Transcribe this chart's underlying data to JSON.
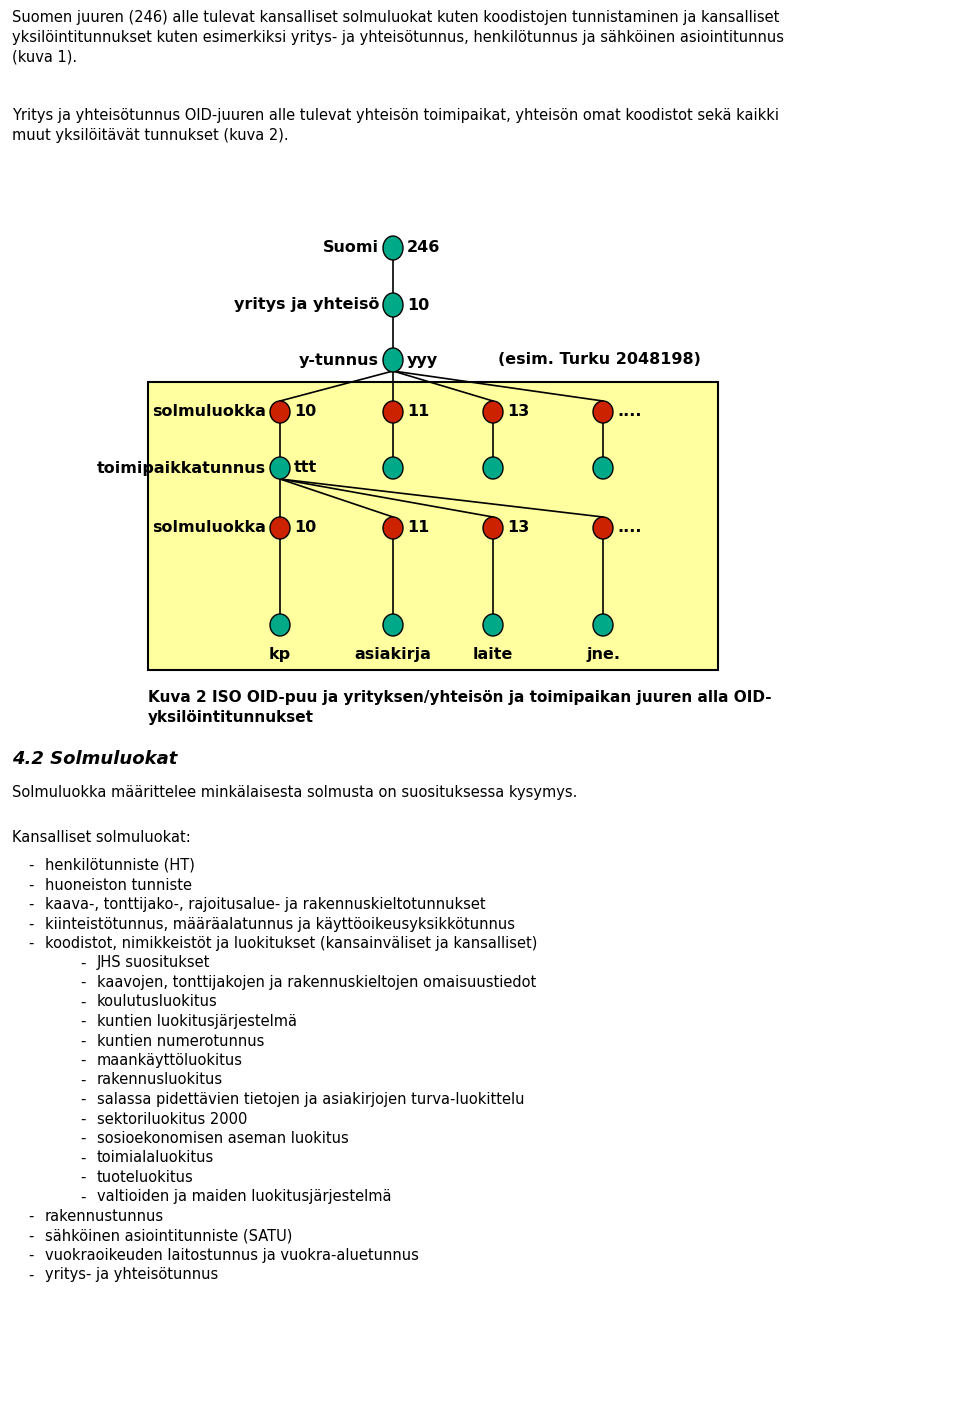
{
  "bg_color": "#ffffff",
  "fig_width": 9.6,
  "fig_height": 14.06,
  "para1": "Suomen juuren (246) alle tulevat kansalliset solmuluokat kuten koodistojen tunnistaminen ja kansalliset\nyksilöintitunnukset kuten esimerkiksi yritys- ja yhteisötunnus, henkilötunnus ja sähköinen asiointitunnus\n(kuva 1).",
  "para2": "Yritys ja yhteisötunnus OID-juuren alle tulevat yhteisön toimipaikat, yhteisön omat koodistot sekä kaikki\nmuut yksilöitävät tunnukset (kuva 2).",
  "caption_line1": "Kuva 2 ISO OID-puu ja yrityksen/yhteisön ja toimipaikan juuren alla OID-",
  "caption_line2": "yksilöintitunnukset",
  "section_title": "4.2 Solmuluokat",
  "section_body": "Solmuluokka määrittelee minkälaisesta solmusta on suosituksessa kysymys.",
  "list_title": "Kansalliset solmuluokat:",
  "list_items": [
    {
      "level": 1,
      "text": "henkilötunniste (HT)"
    },
    {
      "level": 1,
      "text": "huoneiston tunniste"
    },
    {
      "level": 1,
      "text": "kaava-, tonttijako-, rajoitusalue- ja rakennuskieltotunnukset"
    },
    {
      "level": 1,
      "text": "kiinteistötunnus, määräalatunnus ja käyttöoikeusyksikkötunnus"
    },
    {
      "level": 1,
      "text": "koodistot, nimikkeistöt ja luokitukset (kansainväliset ja kansalliset)"
    },
    {
      "level": 2,
      "text": "JHS suositukset"
    },
    {
      "level": 2,
      "text": "kaavojen, tonttijakojen ja rakennuskieltojen omaisuustiedot"
    },
    {
      "level": 2,
      "text": "koulutusluokitus"
    },
    {
      "level": 2,
      "text": "kuntien luokitusjärjestelmä"
    },
    {
      "level": 2,
      "text": "kuntien numerotunnus"
    },
    {
      "level": 2,
      "text": "maankäyttöluokitus"
    },
    {
      "level": 2,
      "text": "rakennusluokitus"
    },
    {
      "level": 2,
      "text": "salassa pidettävien tietojen ja asiakirjojen turva-luokittelu"
    },
    {
      "level": 2,
      "text": "sektoriluokitus 2000"
    },
    {
      "level": 2,
      "text": "sosioekonomisen aseman luokitus"
    },
    {
      "level": 2,
      "text": "toimialaluokitus"
    },
    {
      "level": 2,
      "text": "tuoteluokitus"
    },
    {
      "level": 2,
      "text": "valtioiden ja maiden luokitusjärjestelmä"
    },
    {
      "level": 1,
      "text": "rakennustunnus"
    },
    {
      "level": 1,
      "text": "sähköinen asiointitunniste (SATU)"
    },
    {
      "level": 1,
      "text": "vuokraoikeuden laitostunnus ja vuokra-aluetunnus"
    },
    {
      "level": 1,
      "text": "yritys- ja yhteisötunnus"
    }
  ],
  "teal_color": "#00AA88",
  "red_color": "#CC2200",
  "yellow_bg": "#FFFFA0",
  "text_color": "#000000"
}
